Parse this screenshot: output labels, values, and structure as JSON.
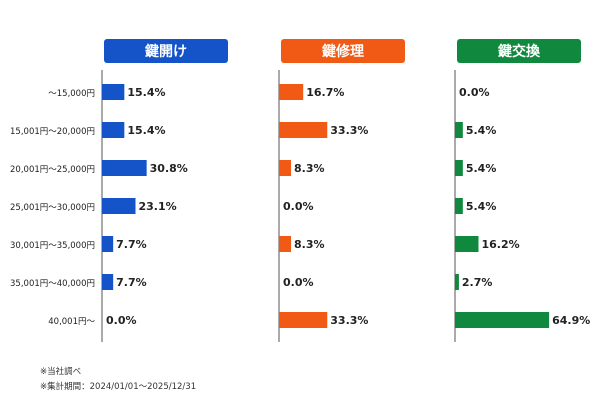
{
  "chart_data": {
    "type": "bar",
    "orientation": "horizontal",
    "categories": [
      "～15,000円",
      "15,001円～20,000円",
      "20,001円～25,000円",
      "25,001円～30,000円",
      "30,001円～35,000円",
      "35,001円～40,000円",
      "40,001円～"
    ],
    "panels": [
      {
        "name": "鍵開け",
        "color": "#1554c8",
        "values": [
          15.4,
          15.4,
          30.8,
          23.1,
          7.7,
          7.7,
          0.0
        ],
        "labels": [
          "15.4%",
          "15.4%",
          "30.8%",
          "23.1%",
          "7.7%",
          "7.7%",
          "0.0%"
        ]
      },
      {
        "name": "鍵修理",
        "color": "#f05a14",
        "values": [
          16.7,
          33.3,
          8.3,
          0.0,
          8.3,
          0.0,
          33.3
        ],
        "labels": [
          "16.7%",
          "33.3%",
          "8.3%",
          "0.0%",
          "8.3%",
          "0.0%",
          "33.3%"
        ]
      },
      {
        "name": "鍵交換",
        "color": "#10893e",
        "values": [
          0.0,
          5.4,
          5.4,
          5.4,
          16.2,
          2.7,
          64.9
        ],
        "labels": [
          "0.0%",
          "5.4%",
          "5.4%",
          "5.4%",
          "16.2%",
          "2.7%",
          "64.9%"
        ]
      }
    ],
    "value_unit": "%",
    "xlim": [
      0,
      70
    ],
    "grid": false,
    "legend": "none"
  },
  "notes": [
    "※当社調べ",
    "※集計期間：2024/01/01～2025/12/31"
  ]
}
